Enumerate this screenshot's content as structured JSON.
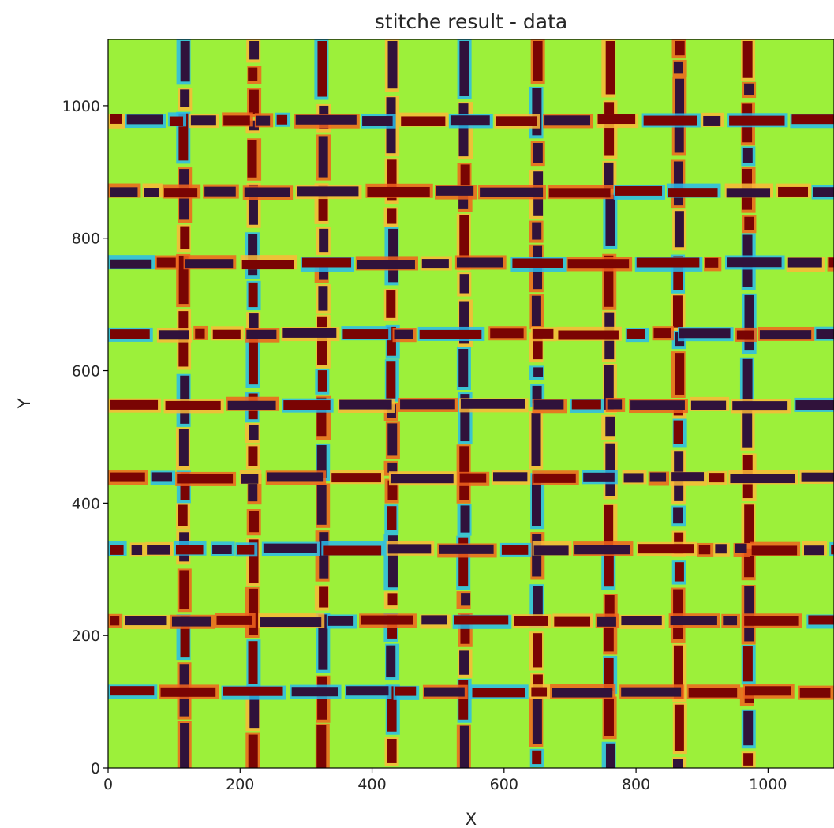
{
  "chart_data": {
    "type": "heatmap",
    "title": "stitche result - data",
    "xlabel": "X",
    "ylabel": "Y",
    "xlim": [
      0,
      1100
    ],
    "ylim": [
      0,
      1100
    ],
    "x_ticks": [
      0,
      200,
      400,
      600,
      800,
      1000
    ],
    "y_ticks": [
      0,
      200,
      400,
      600,
      800,
      1000
    ],
    "colormap": "jet",
    "grid": false,
    "legend": "none",
    "background_color": "#9cf03a",
    "vertical_seams_x": [
      115,
      220,
      325,
      430,
      540,
      650,
      760,
      865,
      970
    ],
    "horizontal_seams_y": [
      115,
      222,
      330,
      438,
      548,
      655,
      762,
      870,
      978
    ],
    "seam_colors": [
      "#7a0403",
      "#30123b",
      "#f1641d",
      "#29bbec",
      "#fbb938"
    ]
  }
}
